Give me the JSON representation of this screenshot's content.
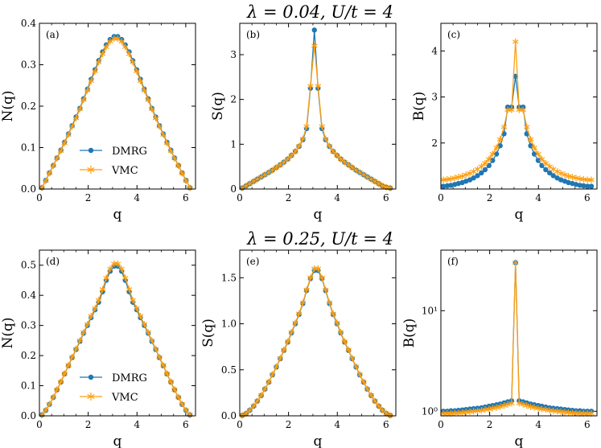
{
  "colors": {
    "dmrg": "#1f77b4",
    "vmc": "#ff9f0f",
    "frame": "#000000"
  },
  "legend": {
    "dmrg_label": "DMRG",
    "vmc_label": "VMC"
  },
  "row_titles": [
    "λ = 0.04,  U/t = 4",
    "λ = 0.25,  U/t = 4"
  ],
  "chart_data": [
    {
      "type": "line",
      "panel": "(a)",
      "row": 0,
      "col": 0,
      "xlabel": "q",
      "ylabel": "N(q)",
      "xlim": [
        0,
        6.4
      ],
      "ylim": [
        0,
        0.4
      ],
      "yscale": "linear",
      "xticks": [
        0,
        2,
        4,
        6
      ],
      "yticks": [
        0.0,
        0.1,
        0.2,
        0.3,
        0.4
      ],
      "ytick_labels": [
        "0.0",
        "0.1",
        "0.2",
        "0.3",
        "0.4"
      ],
      "legend": true,
      "x": [
        0.1,
        0.26,
        0.41,
        0.57,
        0.72,
        0.88,
        1.03,
        1.19,
        1.34,
        1.5,
        1.66,
        1.81,
        1.97,
        2.12,
        2.28,
        2.43,
        2.59,
        2.74,
        2.9,
        3.06,
        3.21,
        3.37,
        3.52,
        3.68,
        3.83,
        3.99,
        4.14,
        4.3,
        4.46,
        4.61,
        4.77,
        4.92,
        5.08,
        5.23,
        5.39,
        5.54,
        5.7,
        5.85,
        6.01,
        6.17
      ],
      "series": [
        {
          "name": "DMRG",
          "marker": "circle",
          "values": [
            0.003,
            0.021,
            0.039,
            0.057,
            0.075,
            0.094,
            0.113,
            0.133,
            0.153,
            0.174,
            0.195,
            0.218,
            0.241,
            0.265,
            0.288,
            0.31,
            0.331,
            0.348,
            0.361,
            0.368,
            0.368,
            0.361,
            0.348,
            0.331,
            0.31,
            0.288,
            0.265,
            0.241,
            0.218,
            0.195,
            0.174,
            0.153,
            0.133,
            0.113,
            0.094,
            0.075,
            0.057,
            0.039,
            0.021,
            0.003
          ]
        },
        {
          "name": "VMC",
          "marker": "star",
          "values": [
            0.003,
            0.02,
            0.038,
            0.056,
            0.074,
            0.092,
            0.111,
            0.131,
            0.151,
            0.171,
            0.193,
            0.215,
            0.238,
            0.261,
            0.284,
            0.306,
            0.326,
            0.343,
            0.356,
            0.363,
            0.363,
            0.356,
            0.343,
            0.326,
            0.306,
            0.284,
            0.261,
            0.238,
            0.215,
            0.193,
            0.171,
            0.151,
            0.131,
            0.111,
            0.092,
            0.074,
            0.056,
            0.038,
            0.02,
            0.003
          ]
        }
      ]
    },
    {
      "type": "line",
      "panel": "(b)",
      "row": 0,
      "col": 1,
      "xlabel": "q",
      "ylabel": "S(q)",
      "xlim": [
        0,
        6.4
      ],
      "ylim": [
        0,
        3.7
      ],
      "yscale": "linear",
      "xticks": [
        0,
        2,
        4,
        6
      ],
      "yticks": [
        0,
        1,
        2,
        3
      ],
      "ytick_labels": [
        "0",
        "1",
        "2",
        "3"
      ],
      "legend": false,
      "x": [
        0.1,
        0.26,
        0.41,
        0.57,
        0.72,
        0.88,
        1.03,
        1.19,
        1.34,
        1.5,
        1.66,
        1.81,
        1.97,
        2.12,
        2.28,
        2.43,
        2.59,
        2.74,
        2.9,
        3.06,
        3.21,
        3.37,
        3.52,
        3.68,
        3.83,
        3.99,
        4.14,
        4.3,
        4.46,
        4.61,
        4.77,
        4.92,
        5.08,
        5.23,
        5.39,
        5.54,
        5.7,
        5.85,
        6.01,
        6.17
      ],
      "series": [
        {
          "name": "DMRG",
          "marker": "circle",
          "values": [
            0.02,
            0.07,
            0.12,
            0.17,
            0.22,
            0.27,
            0.32,
            0.37,
            0.42,
            0.48,
            0.54,
            0.6,
            0.67,
            0.75,
            0.84,
            0.95,
            1.1,
            1.35,
            2.25,
            3.55,
            2.25,
            1.35,
            1.1,
            0.95,
            0.84,
            0.75,
            0.67,
            0.6,
            0.54,
            0.48,
            0.42,
            0.37,
            0.32,
            0.27,
            0.22,
            0.17,
            0.12,
            0.07,
            0.04,
            0.02
          ]
        },
        {
          "name": "VMC",
          "marker": "star",
          "values": [
            0.02,
            0.07,
            0.12,
            0.17,
            0.22,
            0.27,
            0.32,
            0.37,
            0.42,
            0.48,
            0.54,
            0.6,
            0.67,
            0.75,
            0.84,
            0.96,
            1.12,
            1.4,
            2.3,
            3.2,
            2.3,
            1.4,
            1.12,
            0.96,
            0.84,
            0.75,
            0.67,
            0.6,
            0.54,
            0.48,
            0.42,
            0.37,
            0.32,
            0.27,
            0.22,
            0.17,
            0.12,
            0.07,
            0.04,
            0.02
          ]
        }
      ]
    },
    {
      "type": "line",
      "panel": "(c)",
      "row": 0,
      "col": 2,
      "xlabel": "q",
      "ylabel": "B(q)",
      "xlim": [
        0,
        6.4
      ],
      "ylim": [
        1.0,
        4.6
      ],
      "yscale": "linear",
      "xticks": [
        0,
        2,
        4,
        6
      ],
      "yticks": [
        2,
        3,
        4
      ],
      "ytick_labels": [
        "2",
        "3",
        "4"
      ],
      "legend": false,
      "x": [
        0.1,
        0.26,
        0.41,
        0.57,
        0.72,
        0.88,
        1.03,
        1.19,
        1.34,
        1.5,
        1.66,
        1.81,
        1.97,
        2.12,
        2.28,
        2.43,
        2.59,
        2.74,
        2.9,
        3.06,
        3.21,
        3.37,
        3.52,
        3.68,
        3.83,
        3.99,
        4.14,
        4.3,
        4.46,
        4.61,
        4.77,
        4.92,
        5.08,
        5.23,
        5.39,
        5.54,
        5.7,
        5.85,
        6.01,
        6.17
      ],
      "series": [
        {
          "name": "DMRG",
          "marker": "circle",
          "values": [
            1.06,
            1.07,
            1.08,
            1.1,
            1.12,
            1.14,
            1.17,
            1.2,
            1.24,
            1.29,
            1.35,
            1.42,
            1.51,
            1.62,
            1.76,
            1.94,
            2.2,
            2.78,
            2.78,
            3.45,
            2.78,
            2.78,
            2.2,
            1.94,
            1.76,
            1.62,
            1.51,
            1.42,
            1.35,
            1.29,
            1.24,
            1.2,
            1.17,
            1.14,
            1.12,
            1.1,
            1.08,
            1.07,
            1.06,
            1.06
          ]
        },
        {
          "name": "VMC",
          "marker": "star",
          "values": [
            1.2,
            1.21,
            1.22,
            1.24,
            1.26,
            1.28,
            1.31,
            1.34,
            1.38,
            1.43,
            1.49,
            1.56,
            1.65,
            1.76,
            1.9,
            2.08,
            2.35,
            2.72,
            2.72,
            4.2,
            2.72,
            2.72,
            2.35,
            2.08,
            1.9,
            1.76,
            1.65,
            1.56,
            1.49,
            1.43,
            1.38,
            1.34,
            1.31,
            1.28,
            1.26,
            1.24,
            1.22,
            1.21,
            1.2,
            1.2
          ]
        }
      ]
    },
    {
      "type": "line",
      "panel": "(d)",
      "row": 1,
      "col": 0,
      "xlabel": "q",
      "ylabel": "N(q)",
      "xlim": [
        0,
        6.4
      ],
      "ylim": [
        0,
        0.55
      ],
      "yscale": "linear",
      "xticks": [
        0,
        2,
        4,
        6
      ],
      "yticks": [
        0.0,
        0.1,
        0.2,
        0.3,
        0.4,
        0.5
      ],
      "ytick_labels": [
        "0.0",
        "0.1",
        "0.2",
        "0.3",
        "0.4",
        "0.5"
      ],
      "legend": true,
      "x": [
        0.1,
        0.26,
        0.41,
        0.57,
        0.72,
        0.88,
        1.03,
        1.19,
        1.34,
        1.5,
        1.66,
        1.81,
        1.97,
        2.12,
        2.28,
        2.43,
        2.59,
        2.74,
        2.9,
        3.06,
        3.21,
        3.37,
        3.52,
        3.68,
        3.83,
        3.99,
        4.14,
        4.3,
        4.46,
        4.61,
        4.77,
        4.92,
        5.08,
        5.23,
        5.39,
        5.54,
        5.7,
        5.85,
        6.01,
        6.17
      ],
      "series": [
        {
          "name": "DMRG",
          "marker": "circle",
          "values": [
            0.003,
            0.018,
            0.038,
            0.061,
            0.086,
            0.112,
            0.139,
            0.166,
            0.193,
            0.22,
            0.247,
            0.274,
            0.3,
            0.326,
            0.352,
            0.377,
            0.412,
            0.45,
            0.48,
            0.497,
            0.497,
            0.48,
            0.45,
            0.412,
            0.377,
            0.352,
            0.326,
            0.3,
            0.274,
            0.247,
            0.22,
            0.193,
            0.166,
            0.139,
            0.112,
            0.086,
            0.061,
            0.038,
            0.018,
            0.003
          ]
        },
        {
          "name": "VMC",
          "marker": "star",
          "values": [
            0.003,
            0.019,
            0.039,
            0.062,
            0.087,
            0.113,
            0.14,
            0.168,
            0.195,
            0.222,
            0.25,
            0.277,
            0.304,
            0.331,
            0.357,
            0.384,
            0.42,
            0.458,
            0.488,
            0.505,
            0.505,
            0.488,
            0.458,
            0.42,
            0.384,
            0.357,
            0.331,
            0.304,
            0.277,
            0.25,
            0.222,
            0.195,
            0.168,
            0.14,
            0.113,
            0.087,
            0.062,
            0.039,
            0.019,
            0.003
          ]
        }
      ]
    },
    {
      "type": "line",
      "panel": "(e)",
      "row": 1,
      "col": 1,
      "xlabel": "q",
      "ylabel": "S(q)",
      "xlim": [
        0,
        6.4
      ],
      "ylim": [
        0,
        1.8
      ],
      "yscale": "linear",
      "xticks": [
        0,
        2,
        4,
        6
      ],
      "yticks": [
        0.0,
        0.5,
        1.0,
        1.5
      ],
      "ytick_labels": [
        "0.0",
        "0.5",
        "1.0",
        "1.5"
      ],
      "legend": false,
      "x": [
        0.1,
        0.26,
        0.41,
        0.57,
        0.72,
        0.88,
        1.03,
        1.19,
        1.34,
        1.5,
        1.66,
        1.81,
        1.97,
        2.12,
        2.28,
        2.43,
        2.59,
        2.74,
        2.9,
        3.06,
        3.21,
        3.37,
        3.52,
        3.68,
        3.83,
        3.99,
        4.14,
        4.3,
        4.46,
        4.61,
        4.77,
        4.92,
        5.08,
        5.23,
        5.39,
        5.54,
        5.7,
        5.85,
        6.01,
        6.17
      ],
      "series": [
        {
          "name": "DMRG",
          "marker": "circle",
          "values": [
            0.004,
            0.025,
            0.06,
            0.105,
            0.16,
            0.22,
            0.29,
            0.365,
            0.445,
            0.53,
            0.62,
            0.71,
            0.8,
            0.9,
            1.0,
            1.1,
            1.22,
            1.36,
            1.49,
            1.58,
            1.58,
            1.49,
            1.36,
            1.22,
            1.1,
            1.0,
            0.9,
            0.8,
            0.71,
            0.62,
            0.53,
            0.445,
            0.365,
            0.29,
            0.22,
            0.16,
            0.105,
            0.06,
            0.025,
            0.004
          ]
        },
        {
          "name": "VMC",
          "marker": "star",
          "values": [
            0.004,
            0.026,
            0.061,
            0.107,
            0.162,
            0.223,
            0.293,
            0.369,
            0.45,
            0.535,
            0.626,
            0.717,
            0.808,
            0.909,
            1.01,
            1.11,
            1.23,
            1.37,
            1.5,
            1.6,
            1.6,
            1.5,
            1.37,
            1.23,
            1.11,
            1.01,
            0.909,
            0.808,
            0.717,
            0.626,
            0.535,
            0.45,
            0.369,
            0.293,
            0.223,
            0.162,
            0.107,
            0.061,
            0.026,
            0.004
          ]
        }
      ]
    },
    {
      "type": "line",
      "panel": "(f)",
      "row": 1,
      "col": 2,
      "xlabel": "q",
      "ylabel": "B(q)",
      "xlim": [
        0,
        6.4
      ],
      "ylim": [
        0.9,
        40
      ],
      "yscale": "log",
      "xticks": [
        0,
        2,
        4,
        6
      ],
      "yticks": [
        1,
        10
      ],
      "ytick_labels": [
        "10⁰",
        "10¹"
      ],
      "legend": false,
      "x": [
        0.1,
        0.26,
        0.41,
        0.57,
        0.72,
        0.88,
        1.03,
        1.19,
        1.34,
        1.5,
        1.66,
        1.81,
        1.97,
        2.12,
        2.28,
        2.43,
        2.59,
        2.74,
        2.9,
        3.06,
        3.21,
        3.37,
        3.52,
        3.68,
        3.83,
        3.99,
        4.14,
        4.3,
        4.46,
        4.61,
        4.77,
        4.92,
        5.08,
        5.23,
        5.39,
        5.54,
        5.7,
        5.85,
        6.01,
        6.17
      ],
      "series": [
        {
          "name": "DMRG",
          "marker": "circle",
          "values": [
            1.0,
            1.0,
            1.01,
            1.01,
            1.02,
            1.03,
            1.04,
            1.05,
            1.06,
            1.07,
            1.08,
            1.1,
            1.12,
            1.14,
            1.16,
            1.18,
            1.21,
            1.24,
            1.27,
            30.0,
            1.27,
            1.24,
            1.21,
            1.18,
            1.16,
            1.14,
            1.12,
            1.1,
            1.08,
            1.07,
            1.06,
            1.05,
            1.04,
            1.03,
            1.02,
            1.01,
            1.01,
            1.0,
            1.0,
            1.0
          ]
        },
        {
          "name": "VMC",
          "marker": "star",
          "values": [
            0.95,
            0.95,
            0.95,
            0.96,
            0.96,
            0.97,
            0.98,
            0.99,
            1.0,
            1.01,
            1.02,
            1.04,
            1.05,
            1.07,
            1.09,
            1.11,
            1.14,
            1.17,
            1.2,
            30.0,
            1.2,
            1.17,
            1.14,
            1.11,
            1.09,
            1.07,
            1.05,
            1.04,
            1.02,
            1.01,
            1.0,
            0.99,
            0.98,
            0.97,
            0.96,
            0.96,
            0.95,
            0.95,
            0.95,
            0.95
          ]
        }
      ]
    }
  ]
}
